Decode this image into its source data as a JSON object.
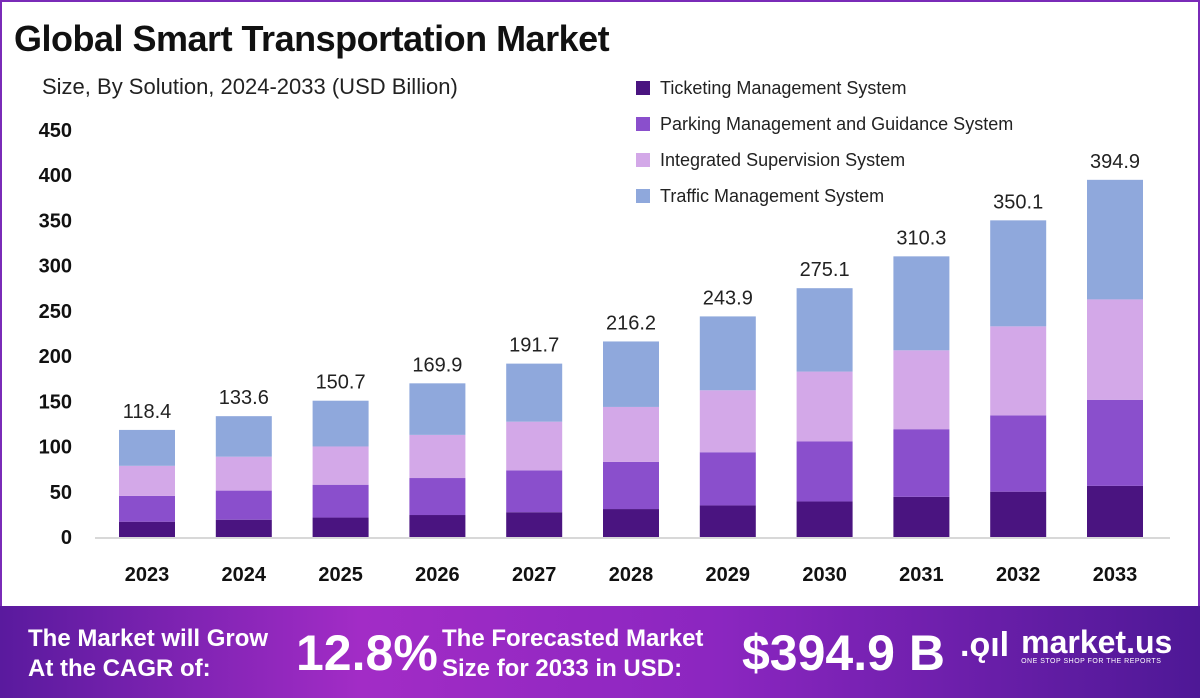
{
  "chart_data": {
    "type": "bar",
    "stacked": true,
    "title": "Global Smart Transportation Market",
    "subtitle": "Size, By Solution, 2024-2033 (USD Billion)",
    "xlabel": "",
    "ylabel": "",
    "ylim": [
      0,
      450
    ],
    "yticks": [
      "0",
      "50",
      "100",
      "150",
      "200",
      "250",
      "300",
      "350",
      "400",
      "450"
    ],
    "categories": [
      "2023",
      "2024",
      "2025",
      "2026",
      "2027",
      "2028",
      "2029",
      "2030",
      "2031",
      "2032",
      "2033"
    ],
    "totals": [
      "118.4",
      "133.6",
      "150.7",
      "169.9",
      "191.7",
      "216.2",
      "243.9",
      "275.1",
      "310.3",
      "350.1",
      "394.9"
    ],
    "series": [
      {
        "name": "Ticketing Management System",
        "color": "#4a1480",
        "values": [
          16.9,
          19.1,
          21.5,
          24.3,
          27.4,
          30.9,
          34.9,
          39.3,
          44.4,
          50.1,
          56.5
        ]
      },
      {
        "name": "Parking Management and Guidance System",
        "color": "#8a4fcc",
        "values": [
          28.5,
          32.2,
          36.3,
          40.9,
          46.2,
          52.1,
          58.8,
          66.3,
          74.8,
          84.4,
          95.2
        ]
      },
      {
        "name": "Integrated Supervision System",
        "color": "#d3a8e8",
        "values": [
          33.3,
          37.5,
          42.3,
          47.7,
          53.9,
          60.8,
          68.5,
          77.3,
          87.2,
          98.4,
          111.0
        ]
      },
      {
        "name": "Traffic Management System",
        "color": "#8fa8dc",
        "values": [
          39.7,
          44.8,
          50.6,
          57.0,
          64.2,
          72.4,
          81.7,
          92.2,
          103.9,
          117.2,
          132.2
        ]
      }
    ],
    "legend_position": "top-right",
    "grid": false
  },
  "footer": {
    "cagr_label_1": "The Market will Grow",
    "cagr_label_2": "At the CAGR of:",
    "cagr_value": "12.8%",
    "forecast_label_1": "The Forecasted Market",
    "forecast_label_2": "Size for 2033 in USD:",
    "forecast_value": "$394.9 B",
    "logo_name": "market.us",
    "logo_tagline": "ONE STOP SHOP FOR THE REPORTS"
  }
}
